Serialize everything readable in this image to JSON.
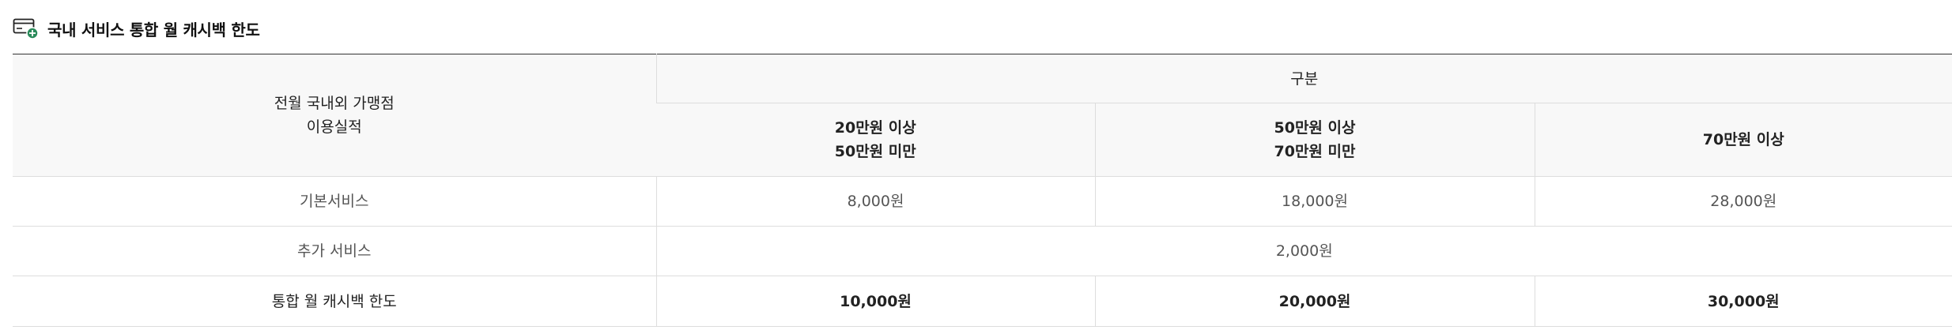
{
  "section": {
    "title": "국내 서비스 통합 월 캐시백 한도",
    "icon": "card-plus-icon",
    "icon_accent": "#2a8a5a"
  },
  "table": {
    "row_header": {
      "line1": "전월 국내외 가맹점",
      "line2": "이용실적"
    },
    "group_header": "구분",
    "tiers": [
      {
        "line1": "20만원 이상",
        "line2": "50만원 미만"
      },
      {
        "line1": "50만원 이상",
        "line2": "70만원 미만"
      },
      {
        "line1": "70만원 이상",
        "line2": ""
      }
    ],
    "rows": [
      {
        "label": "기본서비스",
        "values": [
          "8,000원",
          "18,000원",
          "28,000원"
        ]
      },
      {
        "label": "추가 서비스",
        "merged_value": "2,000원"
      },
      {
        "label": "통합 월 캐시백 한도",
        "values": [
          "10,000원",
          "20,000원",
          "30,000원"
        ]
      }
    ]
  }
}
